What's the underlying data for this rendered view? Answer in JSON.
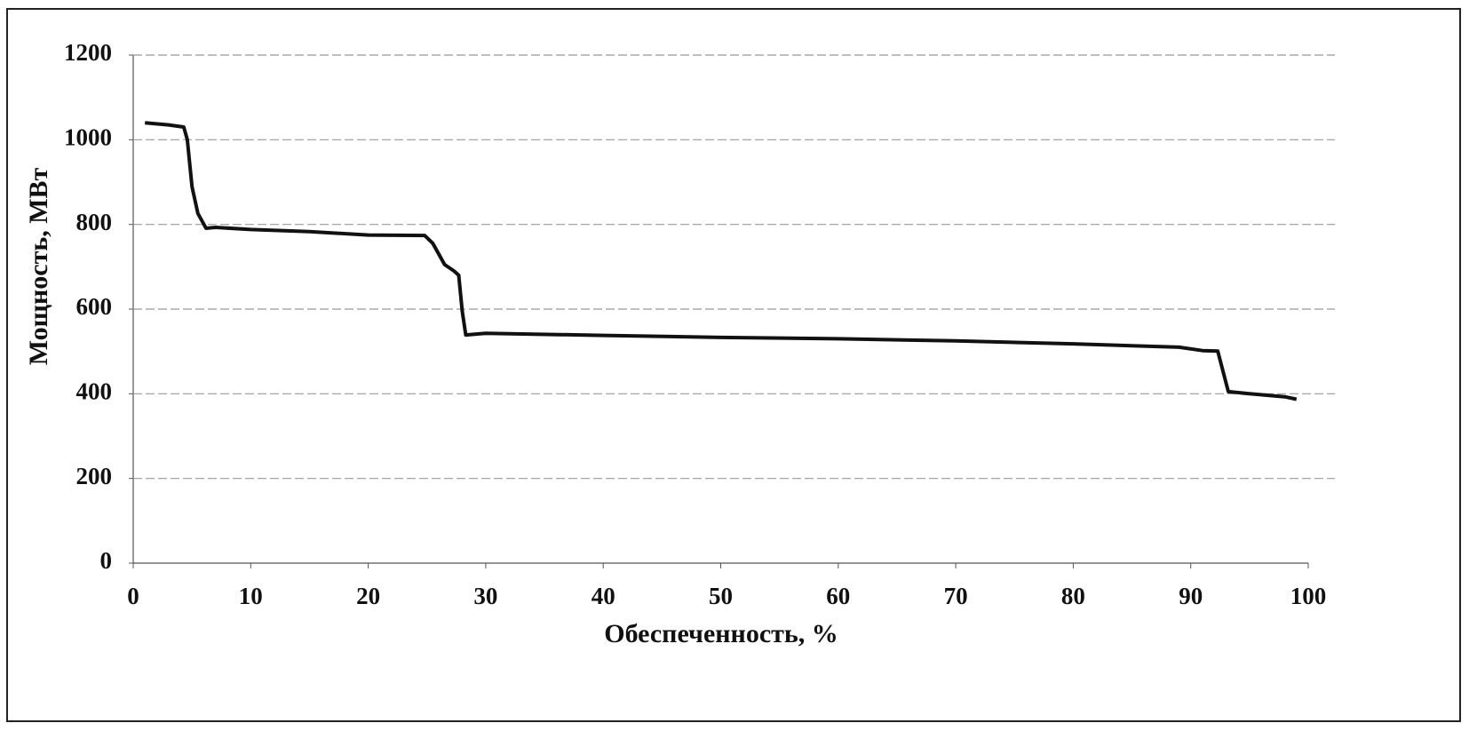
{
  "chart_data": {
    "type": "line",
    "xlabel": "Обеспеченность, %",
    "ylabel": "Мощность, МВт",
    "x": [
      1,
      3,
      4.3,
      4.6,
      5,
      5.5,
      6.2,
      7,
      10,
      15,
      20,
      24.8,
      25.5,
      26.5,
      27.3,
      27.7,
      28,
      28.3,
      30,
      40,
      50,
      60,
      70,
      80,
      89,
      91,
      92.3,
      93.2,
      95,
      98,
      99
    ],
    "values": [
      1040,
      1035,
      1030,
      1000,
      889,
      826,
      791,
      793,
      788,
      783,
      775,
      774,
      755,
      705,
      690,
      680,
      596,
      539,
      543,
      538,
      533,
      530,
      525,
      518,
      510,
      502,
      501,
      405,
      400,
      393,
      387
    ],
    "color": "#111111",
    "xlim": [
      0,
      100
    ],
    "xticks": [
      0,
      10,
      20,
      30,
      40,
      50,
      60,
      70,
      80,
      90,
      100
    ],
    "ylim": [
      0,
      1200
    ],
    "yticks": [
      0,
      200,
      400,
      600,
      800,
      1000,
      1200
    ],
    "grid": true
  }
}
